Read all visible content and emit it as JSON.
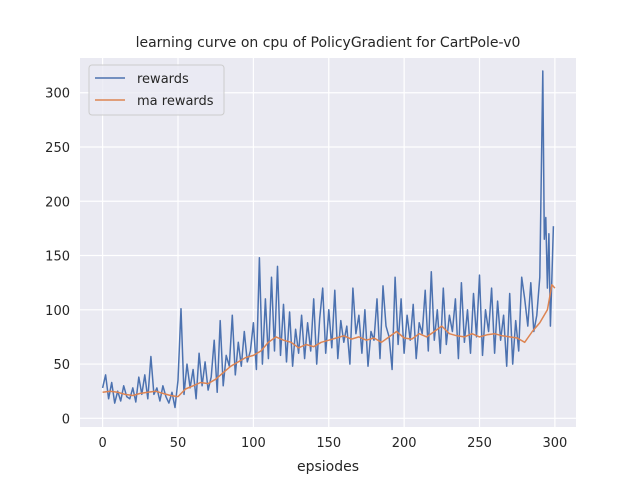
{
  "chart_data": {
    "type": "line",
    "title": "learning curve on cpu of PolicyGradient for CartPole-v0",
    "xlabel": "epsiodes",
    "ylabel": "",
    "xlim": [
      -15,
      314
    ],
    "ylim": [
      -8,
      332
    ],
    "xticks": [
      0,
      50,
      100,
      150,
      200,
      250,
      300
    ],
    "yticks": [
      0,
      50,
      100,
      150,
      200,
      250,
      300
    ],
    "grid": true,
    "legend": "top-left",
    "colors": {
      "background": "#eaeaf2",
      "grid": "#ffffff",
      "rewards": "#4c72b0",
      "ma_rewards": "#dd8452"
    },
    "series": [
      {
        "name": "rewards",
        "x": [
          0,
          2,
          4,
          6,
          8,
          10,
          12,
          14,
          16,
          18,
          20,
          22,
          24,
          26,
          28,
          30,
          32,
          34,
          36,
          38,
          40,
          42,
          44,
          46,
          48,
          50,
          52,
          54,
          56,
          58,
          60,
          62,
          64,
          66,
          68,
          70,
          72,
          74,
          76,
          78,
          80,
          82,
          84,
          86,
          88,
          90,
          92,
          94,
          96,
          98,
          100,
          102,
          104,
          106,
          108,
          110,
          112,
          114,
          116,
          118,
          120,
          122,
          124,
          126,
          128,
          130,
          132,
          134,
          136,
          138,
          140,
          142,
          144,
          146,
          148,
          150,
          152,
          154,
          156,
          158,
          160,
          162,
          164,
          166,
          168,
          170,
          172,
          174,
          176,
          178,
          180,
          182,
          184,
          186,
          188,
          190,
          192,
          194,
          196,
          198,
          200,
          202,
          204,
          206,
          208,
          210,
          212,
          214,
          216,
          218,
          220,
          222,
          224,
          226,
          228,
          230,
          232,
          234,
          236,
          238,
          240,
          242,
          244,
          246,
          248,
          250,
          252,
          254,
          256,
          258,
          260,
          262,
          264,
          266,
          268,
          270,
          272,
          274,
          276,
          278,
          280,
          282,
          284,
          286,
          288,
          290,
          292,
          293,
          294,
          295,
          296,
          297,
          298,
          299
        ],
        "values": [
          28,
          40,
          18,
          33,
          14,
          25,
          16,
          30,
          20,
          18,
          28,
          15,
          38,
          22,
          40,
          18,
          57,
          22,
          28,
          16,
          30,
          20,
          14,
          24,
          10,
          35,
          101,
          22,
          50,
          28,
          45,
          18,
          60,
          30,
          52,
          26,
          38,
          72,
          24,
          90,
          30,
          58,
          48,
          95,
          40,
          70,
          48,
          80,
          52,
          62,
          88,
          45,
          148,
          50,
          110,
          55,
          130,
          62,
          140,
          58,
          105,
          52,
          98,
          48,
          82,
          60,
          95,
          55,
          88,
          62,
          110,
          50,
          92,
          120,
          60,
          100,
          65,
          118,
          55,
          90,
          70,
          85,
          50,
          120,
          78,
          95,
          60,
          100,
          48,
          80,
          72,
          110,
          55,
          122,
          85,
          75,
          45,
          130,
          68,
          110,
          60,
          95,
          72,
          105,
          55,
          88,
          78,
          118,
          62,
          135,
          72,
          100,
          60,
          120,
          68,
          95,
          80,
          110,
          55,
          125,
          70,
          100,
          60,
          115,
          75,
          132,
          58,
          100,
          80,
          120,
          60,
          108,
          72,
          95,
          48,
          115,
          50,
          90,
          62,
          130,
          110,
          85,
          125,
          80,
          95,
          130,
          320,
          165,
          185,
          120,
          170,
          85,
          130,
          177
        ]
      },
      {
        "name": "ma rewards",
        "x": [
          0,
          5,
          10,
          15,
          20,
          25,
          30,
          35,
          40,
          45,
          50,
          55,
          60,
          65,
          70,
          75,
          80,
          85,
          90,
          95,
          100,
          105,
          110,
          115,
          120,
          125,
          130,
          135,
          140,
          145,
          150,
          155,
          160,
          165,
          170,
          175,
          180,
          185,
          190,
          195,
          200,
          205,
          210,
          215,
          220,
          225,
          230,
          235,
          240,
          245,
          250,
          255,
          260,
          265,
          270,
          275,
          280,
          285,
          290,
          295,
          298,
          300
        ],
        "values": [
          24,
          25,
          24,
          22,
          21,
          23,
          24,
          25,
          23,
          21,
          20,
          27,
          30,
          33,
          32,
          36,
          42,
          48,
          52,
          56,
          58,
          62,
          70,
          75,
          72,
          70,
          65,
          68,
          66,
          70,
          72,
          74,
          76,
          73,
          75,
          72,
          74,
          70,
          75,
          80,
          74,
          73,
          78,
          75,
          80,
          85,
          78,
          76,
          75,
          78,
          75,
          77,
          78,
          76,
          75,
          74,
          70,
          80,
          88,
          100,
          123,
          120
        ]
      }
    ]
  }
}
